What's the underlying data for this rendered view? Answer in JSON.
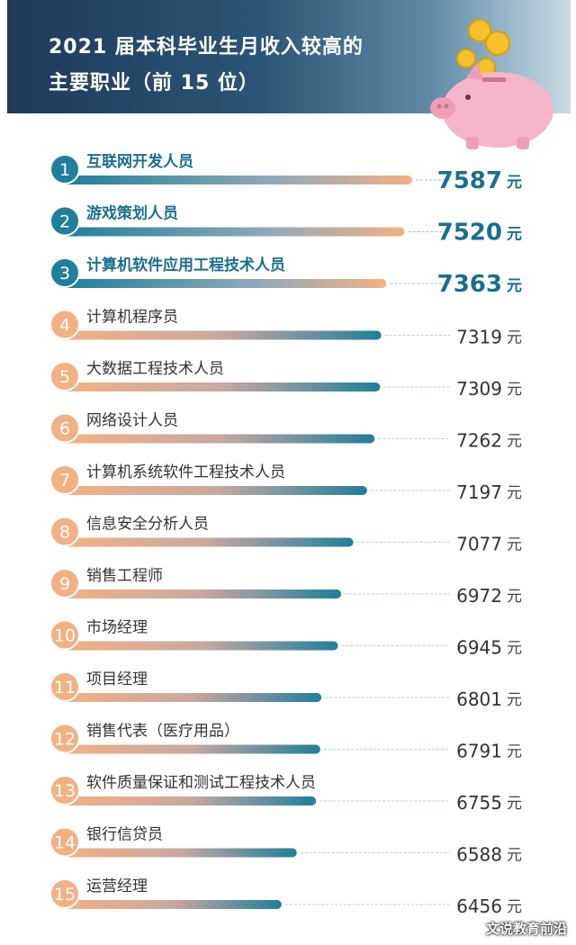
{
  "header": {
    "title_line1": "2021 届本科毕业生月收入较高的",
    "title_line2": "主要职业（前 15 位）"
  },
  "watermark": "文说教育前沿",
  "colors": {
    "teal": "#1f7f9c",
    "peach": "#f3b183",
    "header_dark": "#1f3a5a",
    "pink": "#f4b6c8",
    "coin": "#f6c12c"
  },
  "chart_data": {
    "type": "bar",
    "orientation": "horizontal",
    "unit": "元",
    "categories": [
      "互联网开发人员",
      "游戏策划人员",
      "计算机软件应用工程技术人员",
      "计算机程序员",
      "大数据工程技术人员",
      "网络设计人员",
      "计算机系统软件工程技术人员",
      "信息安全分析人员",
      "销售工程师",
      "市场经理",
      "项目经理",
      "销售代表（医疗用品）",
      "软件质量保证和测试工程技术人员",
      "银行信贷员",
      "运营经理"
    ],
    "ranks": [
      "1",
      "2",
      "3",
      "4",
      "5",
      "6",
      "7",
      "8",
      "9",
      "10",
      "11",
      "12",
      "13",
      "14",
      "15"
    ],
    "values": [
      7587,
      7520,
      7363,
      7319,
      7309,
      7262,
      7197,
      7077,
      6972,
      6945,
      6801,
      6791,
      6755,
      6588,
      6456
    ],
    "highlight_top": 3
  }
}
